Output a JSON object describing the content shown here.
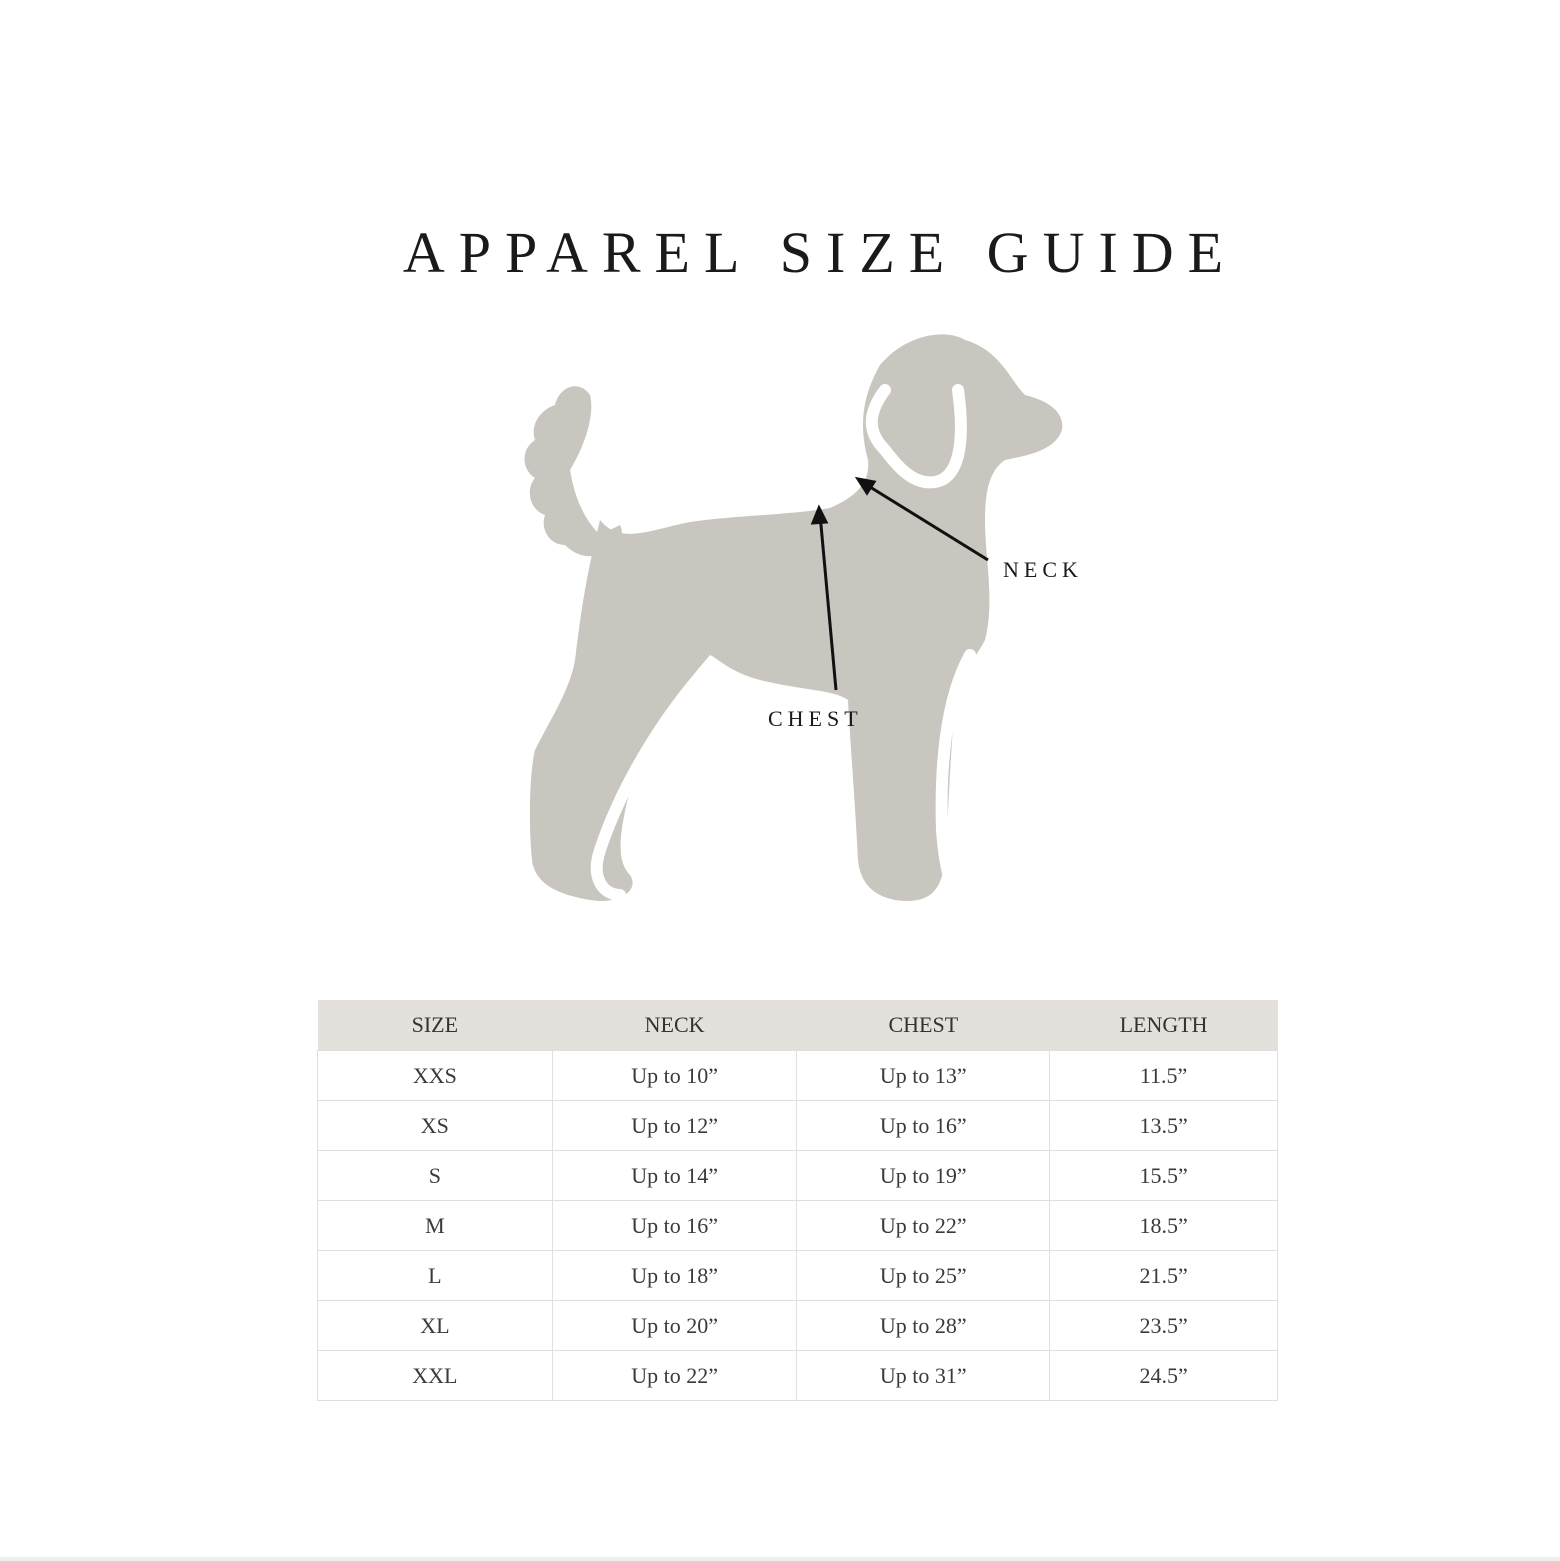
{
  "title": "APPAREL SIZE GUIDE",
  "diagram": {
    "silhouette_color": "#c9c6c0",
    "labels": {
      "neck": "NECK",
      "chest": "CHEST"
    }
  },
  "table": {
    "header_bg": "#e4e1dc",
    "columns": [
      "SIZE",
      "NECK",
      "CHEST",
      "LENGTH"
    ],
    "rows": [
      [
        "XXS",
        "Up to 10”",
        "Up to 13”",
        "11.5”"
      ],
      [
        "XS",
        "Up to 12”",
        "Up to 16”",
        "13.5”"
      ],
      [
        "S",
        "Up to 14”",
        "Up to 19”",
        "15.5”"
      ],
      [
        "M",
        "Up to 16”",
        "Up to 22”",
        "18.5”"
      ],
      [
        "L",
        "Up to 18”",
        "Up to 25”",
        "21.5”"
      ],
      [
        "XL",
        "Up to 20”",
        "Up to 28”",
        "23.5”"
      ],
      [
        "XXL",
        "Up to 22”",
        "Up to 31”",
        "24.5”"
      ]
    ]
  }
}
